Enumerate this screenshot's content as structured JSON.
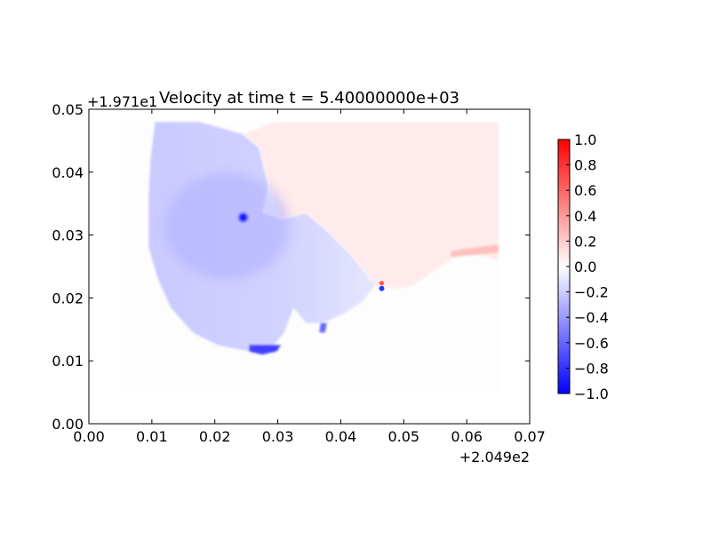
{
  "chart_data": {
    "type": "heatmap",
    "title": "Velocity at time t = 5.40000000e+03",
    "xlabel": "",
    "ylabel": "",
    "x_offset_label": "+2.049e2",
    "y_offset_label": "+1.971e1",
    "xlim": [
      0.0,
      0.07
    ],
    "ylim": [
      0.0,
      0.05
    ],
    "x_ticks": [
      "0.00",
      "0.01",
      "0.02",
      "0.03",
      "0.04",
      "0.05",
      "0.06",
      "0.07"
    ],
    "y_ticks": [
      "0.00",
      "0.01",
      "0.02",
      "0.03",
      "0.04",
      "0.05"
    ],
    "x_tick_values": [
      0.0,
      0.01,
      0.02,
      0.03,
      0.04,
      0.05,
      0.06,
      0.07
    ],
    "y_tick_values": [
      0.0,
      0.01,
      0.02,
      0.03,
      0.04,
      0.05
    ],
    "grid": false,
    "colormap": "bwr",
    "colorbar": {
      "range": [
        -1.0,
        1.0
      ],
      "ticks": [
        "1.0",
        "0.8",
        "0.6",
        "0.4",
        "0.2",
        "0.0",
        "−0.2",
        "−0.4",
        "−0.6",
        "−0.8",
        "−1.0"
      ],
      "tick_values": [
        1.0,
        0.8,
        0.6,
        0.4,
        0.2,
        0.0,
        -0.2,
        -0.4,
        -0.6,
        -0.8,
        -1.0
      ],
      "low_color": "#0000ff",
      "mid_color": "#ffffff",
      "high_color": "#ff0000"
    },
    "field_extent": {
      "x": [
        0.005,
        0.065
      ],
      "y": [
        0.005,
        0.048
      ]
    },
    "regions": [
      {
        "name": "negative-velocity-zone",
        "value": -0.2,
        "polygon": [
          [
            0.0105,
            0.048
          ],
          [
            0.0175,
            0.048
          ],
          [
            0.0245,
            0.046
          ],
          [
            0.027,
            0.044
          ],
          [
            0.0285,
            0.038
          ],
          [
            0.0275,
            0.0335
          ],
          [
            0.0305,
            0.0325
          ],
          [
            0.0345,
            0.0335
          ],
          [
            0.0375,
            0.031
          ],
          [
            0.0415,
            0.027
          ],
          [
            0.0455,
            0.022
          ],
          [
            0.0435,
            0.0195
          ],
          [
            0.0405,
            0.0175
          ],
          [
            0.037,
            0.016
          ],
          [
            0.0345,
            0.016
          ],
          [
            0.0325,
            0.0185
          ],
          [
            0.031,
            0.0145
          ],
          [
            0.029,
            0.012
          ],
          [
            0.0255,
            0.0115
          ],
          [
            0.0205,
            0.0125
          ],
          [
            0.0165,
            0.0145
          ],
          [
            0.013,
            0.0185
          ],
          [
            0.011,
            0.023
          ],
          [
            0.0095,
            0.028
          ],
          [
            0.0095,
            0.036
          ],
          [
            0.0098,
            0.042
          ]
        ]
      },
      {
        "name": "positive-velocity-zone",
        "value": 0.08,
        "polygon": [
          [
            0.0295,
            0.048
          ],
          [
            0.065,
            0.048
          ],
          [
            0.065,
            0.026
          ],
          [
            0.058,
            0.028
          ],
          [
            0.0575,
            0.026
          ],
          [
            0.055,
            0.0245
          ],
          [
            0.0515,
            0.022
          ],
          [
            0.049,
            0.0215
          ],
          [
            0.0455,
            0.022
          ],
          [
            0.0415,
            0.027
          ],
          [
            0.0375,
            0.031
          ],
          [
            0.0345,
            0.0335
          ],
          [
            0.0305,
            0.0325
          ],
          [
            0.0285,
            0.038
          ],
          [
            0.027,
            0.044
          ],
          [
            0.0245,
            0.046
          ]
        ]
      },
      {
        "name": "southern-strong-negative-patch",
        "value": -0.75,
        "polygon": [
          [
            0.0255,
            0.0125
          ],
          [
            0.0305,
            0.0125
          ],
          [
            0.0298,
            0.0115
          ],
          [
            0.0275,
            0.011
          ],
          [
            0.0255,
            0.0115
          ]
        ]
      },
      {
        "name": "secondary-negative-patch",
        "value": -0.6,
        "polygon": [
          [
            0.0368,
            0.016
          ],
          [
            0.0378,
            0.016
          ],
          [
            0.0375,
            0.0145
          ],
          [
            0.0366,
            0.0145
          ]
        ]
      },
      {
        "name": "eastern-positive-band",
        "value": 0.25,
        "polygon": [
          [
            0.0575,
            0.0275
          ],
          [
            0.065,
            0.0285
          ],
          [
            0.065,
            0.0272
          ],
          [
            0.0575,
            0.0265
          ]
        ]
      }
    ],
    "hotspots": [
      {
        "name": "central-vortex-core",
        "x": 0.0245,
        "y": 0.0328,
        "value": -1.0
      },
      {
        "name": "inlet-dipole",
        "x": 0.0465,
        "y": 0.0215,
        "value": -0.8
      }
    ]
  }
}
